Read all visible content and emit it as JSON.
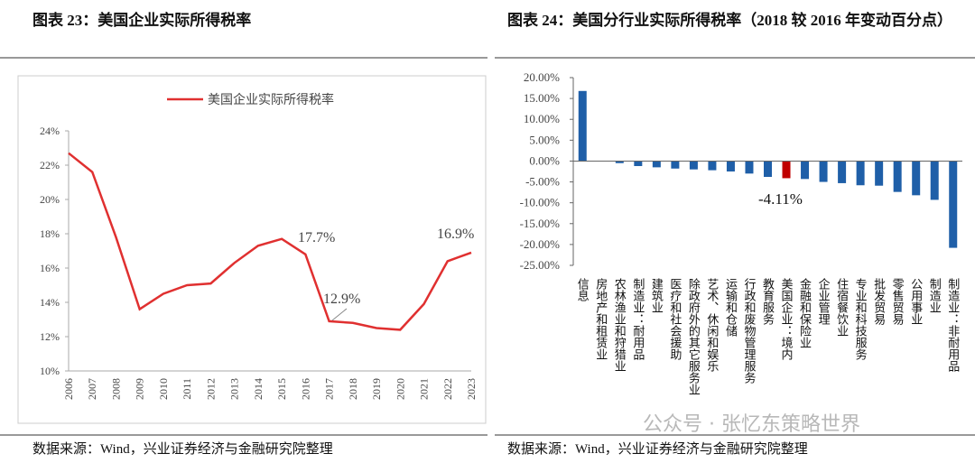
{
  "chart_data": [
    {
      "type": "line",
      "title": "图表 23：美国企业实际所得税率",
      "source": "数据来源：Wind，兴业证券经济与金融研究院整理",
      "x": [
        "2006",
        "2007",
        "2008",
        "2009",
        "2010",
        "2011",
        "2012",
        "2013",
        "2014",
        "2015",
        "2016",
        "2017",
        "2018",
        "2019",
        "2020",
        "2021",
        "2022",
        "2023"
      ],
      "series": [
        {
          "name": "美国企业实际所得税率",
          "color": "#e03030",
          "values": [
            22.7,
            21.6,
            17.8,
            13.6,
            14.5,
            15.0,
            15.1,
            16.3,
            17.3,
            17.7,
            16.8,
            12.9,
            12.8,
            12.5,
            12.4,
            13.9,
            16.4,
            16.9
          ]
        }
      ],
      "ylim": [
        10,
        24
      ],
      "yticks": [
        {
          "value": 10,
          "label": "10%"
        },
        {
          "value": 12,
          "label": "12%"
        },
        {
          "value": 14,
          "label": "14%"
        },
        {
          "value": 16,
          "label": "16%"
        },
        {
          "value": 18,
          "label": "18%"
        },
        {
          "value": 20,
          "label": "20%"
        },
        {
          "value": 22,
          "label": "22%"
        },
        {
          "value": 24,
          "label": "24%"
        }
      ],
      "annotations": [
        "17.7%",
        "12.9%",
        "16.9%"
      ],
      "legend": "top"
    },
    {
      "type": "bar",
      "title": "图表 24：美国分行业实际所得税率（2018 较 2016 年变动百分点）",
      "source": "数据来源：Wind，兴业证券经济与金融研究院整理",
      "categories": [
        "信息",
        "房地产和租赁业",
        "农林渔业和狩猎业",
        "制造业：耐用品",
        "建筑业",
        "医疗和社会援助",
        "除政府外的其它服务业",
        "艺术、休闲和娱乐",
        "运输和仓储",
        "行政和废物管理服务",
        "教育服务",
        "美国企业：境内",
        "金融和保险业",
        "企业管理",
        "住宿餐饮业",
        "专业和科技服务",
        "批发贸易",
        "零售贸易",
        "公用事业",
        "制造业",
        "制造业：非耐用品"
      ],
      "values": [
        16.8,
        0,
        -0.5,
        -1.2,
        -1.5,
        -1.8,
        -2.0,
        -2.2,
        -2.5,
        -3.0,
        -3.8,
        -4.11,
        -4.3,
        -5.0,
        -5.3,
        -5.8,
        -5.9,
        -7.4,
        -8.2,
        -9.3,
        -20.8
      ],
      "colors": [
        "#1f5fa8",
        "#1f5fa8",
        "#1f5fa8",
        "#1f5fa8",
        "#1f5fa8",
        "#1f5fa8",
        "#1f5fa8",
        "#1f5fa8",
        "#1f5fa8",
        "#1f5fa8",
        "#1f5fa8",
        "#c00000",
        "#1f5fa8",
        "#1f5fa8",
        "#1f5fa8",
        "#1f5fa8",
        "#1f5fa8",
        "#1f5fa8",
        "#1f5fa8",
        "#1f5fa8",
        "#1f5fa8"
      ],
      "ylim": [
        -25,
        20
      ],
      "yticks": [
        {
          "value": -25,
          "label": "-25.00%"
        },
        {
          "value": -20,
          "label": "-20.00%"
        },
        {
          "value": -15,
          "label": "-15.00%"
        },
        {
          "value": -10,
          "label": "-10.00%"
        },
        {
          "value": -5,
          "label": "-5.00%"
        },
        {
          "value": 0,
          "label": "0.00%"
        },
        {
          "value": 5,
          "label": "5.00%"
        },
        {
          "value": 10,
          "label": "10.00%"
        },
        {
          "value": 15,
          "label": "15.00%"
        },
        {
          "value": 20,
          "label": "20.00%"
        }
      ],
      "annotations": [
        "-4.11%"
      ]
    }
  ],
  "watermark": "公众号 · 张忆东策略世界"
}
